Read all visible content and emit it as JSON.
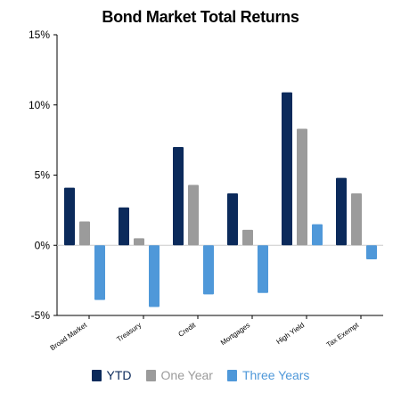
{
  "chart_data": {
    "type": "bar",
    "title": "Bond Market Total Returns",
    "categories": [
      "Broad Market",
      "Treasury",
      "Credit",
      "Mortgages",
      "High Yield",
      "Tax Exempt"
    ],
    "series": [
      {
        "name": "YTD",
        "color": "#0b2a5b",
        "values": [
          4.1,
          2.7,
          7.0,
          3.7,
          10.9,
          4.8
        ]
      },
      {
        "name": "One Year",
        "color": "#9b9b9b",
        "values": [
          1.7,
          0.5,
          4.3,
          1.1,
          8.3,
          3.7
        ]
      },
      {
        "name": "Three Years",
        "color": "#4f98d9",
        "values": [
          -3.9,
          -4.4,
          -3.5,
          -3.4,
          1.5,
          -1.0
        ]
      }
    ],
    "y_ticks": [
      "15%",
      "10%",
      "5%",
      "0%",
      "-5%"
    ],
    "ylim": [
      -5,
      15
    ],
    "legend_position": "bottom"
  }
}
